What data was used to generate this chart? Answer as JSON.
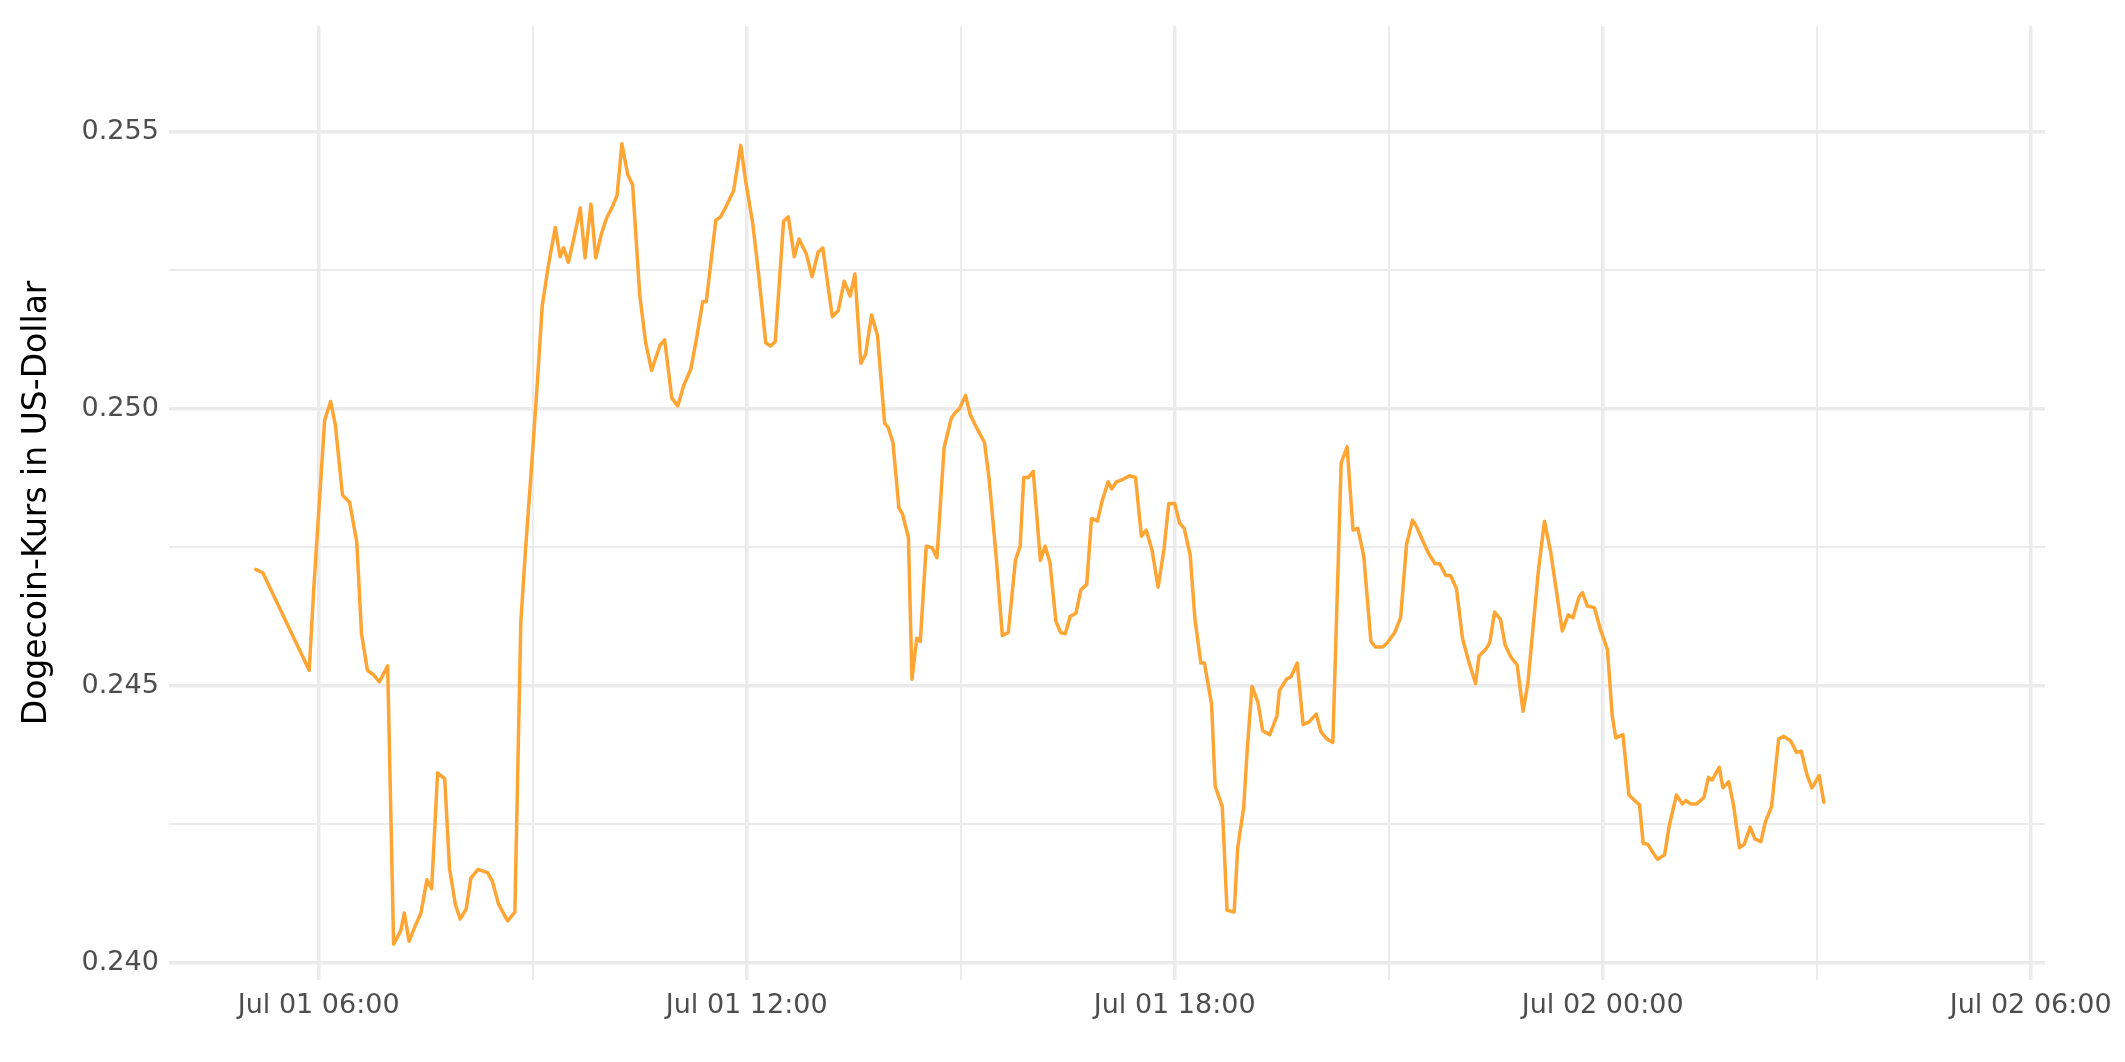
{
  "chart_data": {
    "type": "line",
    "ylabel": "Dogecoin-Kurs in US-Dollar",
    "xlim": [
      "--07-01T03:54",
      "--07-02T06:12"
    ],
    "xticks": [
      {
        "value": "--07-01T06:00",
        "label": "Jul 01 06:00"
      },
      {
        "value": "--07-01T09:00",
        "label": null
      },
      {
        "value": "--07-01T12:00",
        "label": "Jul 01 12:00"
      },
      {
        "value": "--07-01T15:00",
        "label": null
      },
      {
        "value": "--07-01T18:00",
        "label": "Jul 01 18:00"
      },
      {
        "value": "--07-01T21:00",
        "label": null
      },
      {
        "value": "--07-02T00:00",
        "label": "Jul 02 00:00"
      },
      {
        "value": "--07-02T03:00",
        "label": null
      },
      {
        "value": "--07-02T06:00",
        "label": "Jul 02 06:00"
      }
    ],
    "ylim": [
      0.2397,
      0.2569
    ],
    "yticks": [
      {
        "value": 0.24,
        "label": "0.240"
      },
      {
        "value": 0.2425,
        "label": null
      },
      {
        "value": 0.245,
        "label": "0.245"
      },
      {
        "value": 0.2475,
        "label": null
      },
      {
        "value": 0.25,
        "label": "0.250"
      },
      {
        "value": 0.2525,
        "label": null
      },
      {
        "value": 0.255,
        "label": "0.255"
      }
    ],
    "grid": true,
    "legend": false,
    "marker": "none",
    "line_style": "solid",
    "series": [
      {
        "color": "#ffa534",
        "x": [
          "--07-01T05:07",
          "--07-01T05:13",
          "--07-01T05:52",
          "--07-01T05:56",
          "--07-01T06:05",
          "--07-01T06:10",
          "--07-01T06:14",
          "--07-01T06:20",
          "--07-01T06:26",
          "--07-01T06:32",
          "--07-01T06:36",
          "--07-01T06:41",
          "--07-01T06:46",
          "--07-01T06:51",
          "--07-01T06:58",
          "--07-01T07:03",
          "--07-01T07:09",
          "--07-01T07:12",
          "--07-01T07:16",
          "--07-01T07:21",
          "--07-01T07:26",
          "--07-01T07:31",
          "--07-01T07:35",
          "--07-01T07:40",
          "--07-01T07:46",
          "--07-01T07:50",
          "--07-01T07:55",
          "--07-01T07:59",
          "--07-01T08:04",
          "--07-01T08:08",
          "--07-01T08:14",
          "--07-01T08:22",
          "--07-01T08:26",
          "--07-01T08:31",
          "--07-01T08:36",
          "--07-01T08:39",
          "--07-01T08:45",
          "--07-01T08:50",
          "--07-01T08:54",
          "--07-01T08:59",
          "--07-01T09:04",
          "--07-01T09:08",
          "--07-01T09:13",
          "--07-01T09:19",
          "--07-01T09:23",
          "--07-01T09:26",
          "--07-01T09:30",
          "--07-01T09:35",
          "--07-01T09:40",
          "--07-01T09:44",
          "--07-01T09:49",
          "--07-01T09:53",
          "--07-01T09:58",
          "--07-01T10:02",
          "--07-01T10:07",
          "--07-01T10:11",
          "--07-01T10:15",
          "--07-01T10:20",
          "--07-01T10:24",
          "--07-01T10:30",
          "--07-01T10:35",
          "--07-01T10:40",
          "--07-01T10:47",
          "--07-01T10:51",
          "--07-01T10:57",
          "--07-01T11:02",
          "--07-01T11:07",
          "--07-01T11:13",
          "--07-01T11:18",
          "--07-01T11:23",
          "--07-01T11:26",
          "--07-01T11:34",
          "--07-01T11:38",
          "--07-01T11:42",
          "--07-01T11:46",
          "--07-01T11:49",
          "--07-01T11:55",
          "--07-01T11:59",
          "--07-01T12:05",
          "--07-01T12:10",
          "--07-01T12:16",
          "--07-01T12:20",
          "--07-01T12:24",
          "--07-01T12:31",
          "--07-01T12:35",
          "--07-01T12:40",
          "--07-01T12:44",
          "--07-01T12:50",
          "--07-01T12:55",
          "--07-01T13:00",
          "--07-01T13:04",
          "--07-01T13:12",
          "--07-01T13:17",
          "--07-01T13:22",
          "--07-01T13:27",
          "--07-01T13:31",
          "--07-01T13:36",
          "--07-01T13:40",
          "--07-01T13:45",
          "--07-01T13:50",
          "--07-01T13:56",
          "--07-01T13:59",
          "--07-01T14:03",
          "--07-01T14:08",
          "--07-01T14:11",
          "--07-01T14:16",
          "--07-01T14:19",
          "--07-01T14:23",
          "--07-01T14:26",
          "--07-01T14:31",
          "--07-01T14:36",
          "--07-01T14:40",
          "--07-01T14:46",
          "--07-01T14:52",
          "--07-01T14:55",
          "--07-01T14:59",
          "--07-01T15:04",
          "--07-01T15:08",
          "--07-01T15:14",
          "--07-01T15:20",
          "--07-01T15:24",
          "--07-01T15:30",
          "--07-01T15:35",
          "--07-01T15:40",
          "--07-01T15:46",
          "--07-01T15:50",
          "--07-01T15:53",
          "--07-01T15:57",
          "--07-01T16:01",
          "--07-01T16:07",
          "--07-01T16:11",
          "--07-01T16:15",
          "--07-01T16:20",
          "--07-01T16:24",
          "--07-01T16:28",
          "--07-01T16:32",
          "--07-01T16:37",
          "--07-01T16:41",
          "--07-01T16:46",
          "--07-01T16:50",
          "--07-01T16:55",
          "--07-01T16:59",
          "--07-01T17:04",
          "--07-01T17:07",
          "--07-01T17:11",
          "--07-01T17:17",
          "--07-01T17:22",
          "--07-01T17:27",
          "--07-01T17:32",
          "--07-01T17:36",
          "--07-01T17:41",
          "--07-01T17:46",
          "--07-01T17:51",
          "--07-01T17:55",
          "--07-01T18:00",
          "--07-01T18:04",
          "--07-01T18:08",
          "--07-01T18:13",
          "--07-01T18:17",
          "--07-01T18:22",
          "--07-01T18:25",
          "--07-01T18:31",
          "--07-01T18:34",
          "--07-01T18:40",
          "--07-01T18:44",
          "--07-01T18:50",
          "--07-01T18:53",
          "--07-01T18:58",
          "--07-01T19:01",
          "--07-01T19:05",
          "--07-01T19:10",
          "--07-01T19:14",
          "--07-01T19:20",
          "--07-01T19:26",
          "--07-01T19:28",
          "--07-01T19:34",
          "--07-01T19:38",
          "--07-01T19:43",
          "--07-01T19:48",
          "--07-01T19:53",
          "--07-01T19:59",
          "--07-01T20:03",
          "--07-01T20:08",
          "--07-01T20:13",
          "--07-01T20:20",
          "--07-01T20:25",
          "--07-01T20:30",
          "--07-01T20:34",
          "--07-01T20:39",
          "--07-01T20:45",
          "--07-01T20:49",
          "--07-01T20:55",
          "--07-01T20:59",
          "--07-01T21:05",
          "--07-01T21:10",
          "--07-01T21:15",
          "--07-01T21:20",
          "--07-01T21:23",
          "--07-01T21:29",
          "--07-01T21:33",
          "--07-01T21:39",
          "--07-01T21:43",
          "--07-01T21:48",
          "--07-01T21:52",
          "--07-01T21:57",
          "--07-01T22:02",
          "--07-01T22:07",
          "--07-01T22:13",
          "--07-01T22:16",
          "--07-01T22:22",
          "--07-01T22:25",
          "--07-01T22:29",
          "--07-01T22:34",
          "--07-01T22:38",
          "--07-01T22:43",
          "--07-01T22:48",
          "--07-01T22:53",
          "--07-01T22:57",
          "--07-01T23:06",
          "--07-01T23:11",
          "--07-01T23:16",
          "--07-01T23:22",
          "--07-01T23:26",
          "--07-01T23:31",
          "--07-01T23:35",
          "--07-01T23:40",
          "--07-01T23:43",
          "--07-01T23:47",
          "--07-01T23:53",
          "--07-01T23:58",
          "--07-02T00:04",
          "--07-02T00:08",
          "--07-02T00:11",
          "--07-02T00:17",
          "--07-02T00:22",
          "--07-02T00:26",
          "--07-02T00:31",
          "--07-02T00:34",
          "--07-02T00:38",
          "--07-02T00:42",
          "--07-02T00:46",
          "--07-02T00:52",
          "--07-02T00:56",
          "--07-02T01:02",
          "--07-02T01:07",
          "--07-02T01:10",
          "--07-02T01:14",
          "--07-02T01:19",
          "--07-02T01:25",
          "--07-02T01:29",
          "--07-02T01:32",
          "--07-02T01:38",
          "--07-02T01:41",
          "--07-02T01:46",
          "--07-02T01:50",
          "--07-02T01:55",
          "--07-02T01:59",
          "--07-02T02:04",
          "--07-02T02:08",
          "--07-02T02:13",
          "--07-02T02:17",
          "--07-02T02:22",
          "--07-02T02:28",
          "--07-02T02:32",
          "--07-02T02:38",
          "--07-02T02:43",
          "--07-02T02:47",
          "--07-02T02:52",
          "--07-02T02:56",
          "--07-02T03:02",
          "--07-02T03:06"
        ],
        "values": [
          0.2471,
          0.24704,
          0.24528,
          0.24681,
          0.24979,
          0.25013,
          0.24971,
          0.24844,
          0.24831,
          0.2476,
          0.24594,
          0.24528,
          0.2452,
          0.24507,
          0.24536,
          0.24034,
          0.24058,
          0.2409,
          0.24039,
          0.24066,
          0.2409,
          0.2415,
          0.24134,
          0.24343,
          0.24332,
          0.24171,
          0.24105,
          0.24079,
          0.24097,
          0.24153,
          0.24169,
          0.24163,
          0.24148,
          0.24108,
          0.24087,
          0.24076,
          0.24092,
          0.24615,
          0.24747,
          0.24894,
          0.2505,
          0.25185,
          0.25256,
          0.25327,
          0.25274,
          0.2529,
          0.25264,
          0.25311,
          0.25362,
          0.25272,
          0.25369,
          0.25272,
          0.25317,
          0.25343,
          0.25364,
          0.25385,
          0.25478,
          0.25422,
          0.25404,
          0.25206,
          0.25119,
          0.25069,
          0.25114,
          0.25124,
          0.25019,
          0.25005,
          0.25042,
          0.25071,
          0.25129,
          0.25193,
          0.25193,
          0.2534,
          0.25346,
          0.25362,
          0.2538,
          0.25393,
          0.25475,
          0.25412,
          0.25335,
          0.25243,
          0.25119,
          0.25113,
          0.25121,
          0.25338,
          0.25346,
          0.25274,
          0.25306,
          0.2528,
          0.25238,
          0.25282,
          0.2529,
          0.25166,
          0.25177,
          0.2523,
          0.25203,
          0.25243,
          0.25082,
          0.25098,
          0.25169,
          0.25132,
          0.24974,
          0.24966,
          0.24939,
          0.24821,
          0.2481,
          0.24768,
          0.24512,
          0.24586,
          0.2458,
          0.24752,
          0.24749,
          0.24731,
          0.24929,
          0.24982,
          0.24992,
          0.25,
          0.25024,
          0.24989,
          0.24963,
          0.24939,
          0.24871,
          0.24728,
          0.24591,
          0.24596,
          0.24726,
          0.24752,
          0.24876,
          0.24876,
          0.24887,
          0.24726,
          0.24752,
          0.24723,
          0.24617,
          0.24596,
          0.24594,
          0.24625,
          0.24631,
          0.24673,
          0.24683,
          0.24802,
          0.24797,
          0.24834,
          0.24868,
          0.24855,
          0.24868,
          0.24873,
          0.24879,
          0.24876,
          0.2477,
          0.24781,
          0.24744,
          0.24678,
          0.24747,
          0.24829,
          0.24829,
          0.24794,
          0.24784,
          0.24736,
          0.2462,
          0.24541,
          0.24541,
          0.24467,
          0.24319,
          0.24282,
          0.24095,
          0.24092,
          0.24208,
          0.2428,
          0.24385,
          0.24499,
          0.2447,
          0.24419,
          0.24412,
          0.24446,
          0.24491,
          0.24512,
          0.24517,
          0.24541,
          0.2443,
          0.24435,
          0.24449,
          0.24417,
          0.24404,
          0.24398,
          0.24902,
          0.24931,
          0.24781,
          0.24784,
          0.24734,
          0.2458,
          0.2457,
          0.2457,
          0.24578,
          0.24596,
          0.24623,
          0.24755,
          0.24799,
          0.24789,
          0.2476,
          0.24741,
          0.2472,
          0.2472,
          0.24699,
          0.24699,
          0.24675,
          0.24586,
          0.24546,
          0.24504,
          0.24554,
          0.24567,
          0.24578,
          0.24633,
          0.2462,
          0.24573,
          0.24551,
          0.24538,
          0.24454,
          0.24504,
          0.2471,
          0.24797,
          0.24744,
          0.24657,
          0.24599,
          0.24628,
          0.24623,
          0.2466,
          0.24668,
          0.24644,
          0.24641,
          0.24602,
          0.24565,
          0.24446,
          0.24406,
          0.24412,
          0.24303,
          0.24295,
          0.24285,
          0.24216,
          0.24214,
          0.242,
          0.24187,
          0.24195,
          0.24248,
          0.24303,
          0.24287,
          0.24293,
          0.24287,
          0.24287,
          0.24298,
          0.24335,
          0.2433,
          0.24353,
          0.24316,
          0.24327,
          0.24285,
          0.24208,
          0.24214,
          0.24245,
          0.24224,
          0.24219,
          0.24256,
          0.24282,
          0.24404,
          0.24409,
          0.24401,
          0.2438,
          0.24382,
          0.24338,
          0.24316,
          0.24338,
          0.2429
        ]
      }
    ]
  }
}
